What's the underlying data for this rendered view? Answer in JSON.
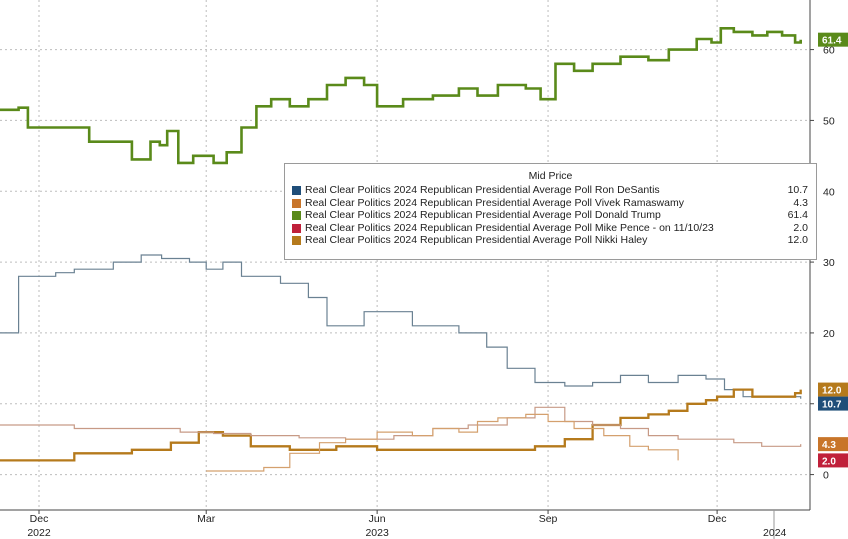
{
  "chart_data": {
    "type": "line",
    "x_ticks": [
      {
        "label": "Dec",
        "sub": "2022",
        "x": "2022-12-01"
      },
      {
        "label": "Mar",
        "sub": "",
        "x": "2023-03-01"
      },
      {
        "label": "Jun",
        "sub": "2023",
        "x": "2023-06-01"
      },
      {
        "label": "Sep",
        "sub": "",
        "x": "2023-09-01"
      },
      {
        "label": "Dec",
        "sub": "",
        "x": "2023-12-01"
      },
      {
        "label": "",
        "sub": "2024",
        "x": "2024-01-01"
      }
    ],
    "xlim": [
      "2022-11-10",
      "2024-01-20"
    ],
    "ylim": [
      -5,
      67
    ],
    "y_ticks": [
      0,
      10,
      20,
      30,
      40,
      50,
      60
    ],
    "grid": true,
    "legend": {
      "title": "Mid Price",
      "placement": "center-right",
      "entries": [
        {
          "label": "Real Clear Politics 2024 Republican Presidential Average Poll Ron DeSantis",
          "value": "10.7",
          "color": "#1f4e79"
        },
        {
          "label": "Real Clear Politics 2024 Republican Presidential Average Poll Vivek Ramaswamy",
          "value": "4.3",
          "color": "#c8752a"
        },
        {
          "label": "Real Clear Politics 2024 Republican Presidential Average Poll Donald Trump",
          "value": "61.4",
          "color": "#5a8a1a"
        },
        {
          "label": "Real Clear Politics 2024 Republican Presidential Average Poll Mike Pence -  on 11/10/23",
          "value": "2.0",
          "color": "#c0203a"
        },
        {
          "label": "Real Clear Politics 2024 Republican Presidential Average Poll Nikki Haley",
          "value": "12.0",
          "color": "#b57a1c"
        }
      ]
    },
    "badges": [
      {
        "text": "61.4",
        "value": 61.4,
        "bg": "#5a8a1a",
        "fg": "#ffffff"
      },
      {
        "text": "12.0",
        "value": 12.0,
        "bg": "#b57a1c",
        "fg": "#ffffff"
      },
      {
        "text": "10.7",
        "value": 10.7,
        "bg": "#1f4e79",
        "fg": "#ffffff"
      },
      {
        "text": "4.3",
        "value": 4.3,
        "bg": "#c8752a",
        "fg": "#ffffff"
      },
      {
        "text": "2.0",
        "value": 2.0,
        "bg": "#c0203a",
        "fg": "#ffffff"
      }
    ],
    "series": [
      {
        "name": "Donald Trump",
        "color": "#5a8a1a",
        "width": 2.6,
        "x": [
          "2022-11-10",
          "2022-11-20",
          "2022-11-25",
          "2022-12-20",
          "2022-12-28",
          "2023-01-10",
          "2023-01-20",
          "2023-01-30",
          "2023-02-04",
          "2023-02-08",
          "2023-02-14",
          "2023-02-22",
          "2023-03-05",
          "2023-03-12",
          "2023-03-20",
          "2023-03-28",
          "2023-04-05",
          "2023-04-15",
          "2023-04-25",
          "2023-05-05",
          "2023-05-15",
          "2023-05-25",
          "2023-06-01",
          "2023-06-15",
          "2023-07-01",
          "2023-07-15",
          "2023-07-25",
          "2023-08-05",
          "2023-08-20",
          "2023-08-28",
          "2023-09-05",
          "2023-09-15",
          "2023-09-25",
          "2023-10-10",
          "2023-10-25",
          "2023-11-05",
          "2023-11-20",
          "2023-11-28",
          "2023-12-03",
          "2023-12-10",
          "2023-12-20",
          "2023-12-28",
          "2024-01-05",
          "2024-01-12",
          "2024-01-15"
        ],
        "y": [
          51.5,
          51.8,
          49,
          49,
          47,
          47,
          44.5,
          47,
          46.5,
          48.5,
          44,
          45,
          44,
          45.5,
          49,
          52,
          53,
          52,
          53,
          55,
          56,
          55,
          52,
          53,
          53.5,
          54.5,
          53.5,
          55,
          54.5,
          53,
          58,
          57,
          58,
          59,
          58.5,
          60,
          61.5,
          61,
          63,
          62.5,
          62,
          62.5,
          62,
          61,
          61.4
        ]
      },
      {
        "name": "Ron DeSantis",
        "color": "#6a8192",
        "width": 1.2,
        "x": [
          "2022-11-10",
          "2022-11-18",
          "2022-11-20",
          "2022-12-10",
          "2022-12-20",
          "2023-01-10",
          "2023-01-25",
          "2023-02-05",
          "2023-02-20",
          "2023-03-01",
          "2023-03-10",
          "2023-03-20",
          "2023-04-10",
          "2023-04-25",
          "2023-05-05",
          "2023-05-15",
          "2023-05-25",
          "2023-06-05",
          "2023-06-20",
          "2023-07-01",
          "2023-07-15",
          "2023-07-30",
          "2023-08-10",
          "2023-08-25",
          "2023-09-10",
          "2023-09-25",
          "2023-10-10",
          "2023-10-25",
          "2023-11-10",
          "2023-11-25",
          "2023-12-05",
          "2023-12-15",
          "2024-01-01",
          "2024-01-15"
        ],
        "y": [
          20,
          20,
          28,
          28.5,
          29,
          30,
          31,
          30.5,
          30,
          29,
          30,
          28,
          27,
          25,
          21,
          21,
          23,
          23,
          21,
          21,
          20,
          18,
          15,
          13,
          12.5,
          13,
          14,
          13,
          14,
          13.5,
          12,
          11,
          11,
          10.7
        ]
      },
      {
        "name": "Nikki Haley",
        "color": "#b57a1c",
        "width": 2.3,
        "x": [
          "2022-11-10",
          "2022-12-01",
          "2022-12-20",
          "2023-01-20",
          "2023-02-10",
          "2023-02-25",
          "2023-03-10",
          "2023-03-25",
          "2023-04-15",
          "2023-05-10",
          "2023-06-01",
          "2023-06-25",
          "2023-07-15",
          "2023-08-05",
          "2023-08-25",
          "2023-09-10",
          "2023-09-25",
          "2023-10-10",
          "2023-10-25",
          "2023-11-05",
          "2023-11-15",
          "2023-11-25",
          "2023-12-01",
          "2023-12-10",
          "2023-12-20",
          "2024-01-05",
          "2024-01-12",
          "2024-01-15"
        ],
        "y": [
          2,
          2,
          3,
          3.5,
          4.5,
          6,
          5.5,
          4,
          3.5,
          4,
          3.5,
          3.5,
          3.5,
          3.5,
          4,
          5,
          7,
          8,
          8.5,
          9,
          10,
          10.5,
          11,
          12,
          11,
          11,
          11.5,
          12
        ]
      },
      {
        "name": "Vivek Ramaswamy",
        "color": "#c79a86",
        "width": 1.2,
        "x": [
          "2022-11-10",
          "2022-11-25",
          "2022-12-20",
          "2023-01-20",
          "2023-02-15",
          "2023-03-05",
          "2023-03-25",
          "2023-04-20",
          "2023-05-15",
          "2023-06-10",
          "2023-07-01",
          "2023-07-20",
          "2023-08-10",
          "2023-08-25",
          "2023-09-10",
          "2023-09-25",
          "2023-10-10",
          "2023-10-25",
          "2023-11-10",
          "2023-11-25",
          "2023-12-10",
          "2023-12-25",
          "2024-01-05",
          "2024-01-15"
        ],
        "y": [
          7,
          7,
          6.5,
          6.5,
          6,
          5.8,
          5.5,
          5.2,
          5,
          5.5,
          6.5,
          7,
          8,
          9.5,
          7.5,
          7,
          6.5,
          5.5,
          5,
          5,
          4.5,
          4,
          4,
          4.3
        ]
      },
      {
        "name": "Mike Pence",
        "color": "#d4a06e",
        "width": 1.2,
        "x": [
          "2023-03-01",
          "2023-03-15",
          "2023-04-01",
          "2023-04-15",
          "2023-05-01",
          "2023-05-15",
          "2023-06-01",
          "2023-06-20",
          "2023-07-01",
          "2023-07-15",
          "2023-07-25",
          "2023-08-05",
          "2023-08-20",
          "2023-09-01",
          "2023-09-15",
          "2023-10-01",
          "2023-10-15",
          "2023-10-25",
          "2023-11-10"
        ],
        "y": [
          0.5,
          0.5,
          1,
          3,
          4.5,
          5,
          6,
          5.5,
          6.5,
          6,
          7.5,
          8,
          8.5,
          7.5,
          6.5,
          5.5,
          4,
          3.5,
          2
        ]
      }
    ]
  }
}
